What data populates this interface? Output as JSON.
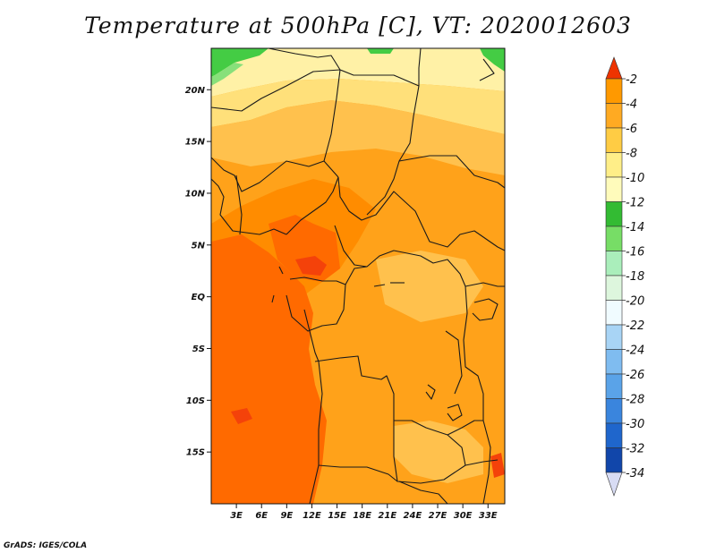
{
  "title": "Temperature at 500hPa [C], VT: 2020012603",
  "footer": "GrADS: IGES/COLA",
  "map": {
    "lon_range": [
      0,
      35
    ],
    "lat_range": [
      -20,
      24
    ],
    "lat_ticks": [
      {
        "value": 20,
        "label": "20N"
      },
      {
        "value": 15,
        "label": "15N"
      },
      {
        "value": 10,
        "label": "10N"
      },
      {
        "value": 5,
        "label": "5N"
      },
      {
        "value": 0,
        "label": "EQ"
      },
      {
        "value": -5,
        "label": "5S"
      },
      {
        "value": -10,
        "label": "10S"
      },
      {
        "value": -15,
        "label": "15S"
      }
    ],
    "lon_ticks": [
      {
        "value": 3,
        "label": "3E"
      },
      {
        "value": 6,
        "label": "6E"
      },
      {
        "value": 9,
        "label": "9E"
      },
      {
        "value": 12,
        "label": "12E"
      },
      {
        "value": 15,
        "label": "15E"
      },
      {
        "value": 18,
        "label": "18E"
      },
      {
        "value": 21,
        "label": "21E"
      },
      {
        "value": 24,
        "label": "24E"
      },
      {
        "value": 27,
        "label": "27E"
      },
      {
        "value": 30,
        "label": "30E"
      },
      {
        "value": 33,
        "label": "33E"
      }
    ]
  },
  "colorbar": {
    "levels": [
      "-2",
      "-4",
      "-6",
      "-8",
      "-10",
      "-12",
      "-14",
      "-16",
      "-18",
      "-20",
      "-22",
      "-24",
      "-26",
      "-28",
      "-30",
      "-32",
      "-34"
    ],
    "colors": [
      "#ff6600",
      "#ff9900",
      "#ffaa22",
      "#ffcc44",
      "#ffee88",
      "#fffbbb",
      "#33bb33",
      "#77dd66",
      "#aaeebb",
      "#ddf6dd",
      "#f0fbff",
      "#a8d4f5",
      "#7fbcf0",
      "#5aa3e8",
      "#3a85dd",
      "#1f66cc",
      "#1146aa",
      "#0a1a80"
    ],
    "top_arrow_color": "#ee3300",
    "bottom_arrow_color": "#d8dcf4"
  },
  "palette": {
    "yellow_light": "#fff1a6",
    "yellow": "#ffe07a",
    "orange_light": "#ffc14d",
    "orange": "#ffa21a",
    "orange_deep": "#ff8c00",
    "red_orange": "#ff6a00",
    "red": "#f4420a",
    "green": "#44cc44",
    "green_light": "#88e07a",
    "border": "#1a1a1a"
  }
}
